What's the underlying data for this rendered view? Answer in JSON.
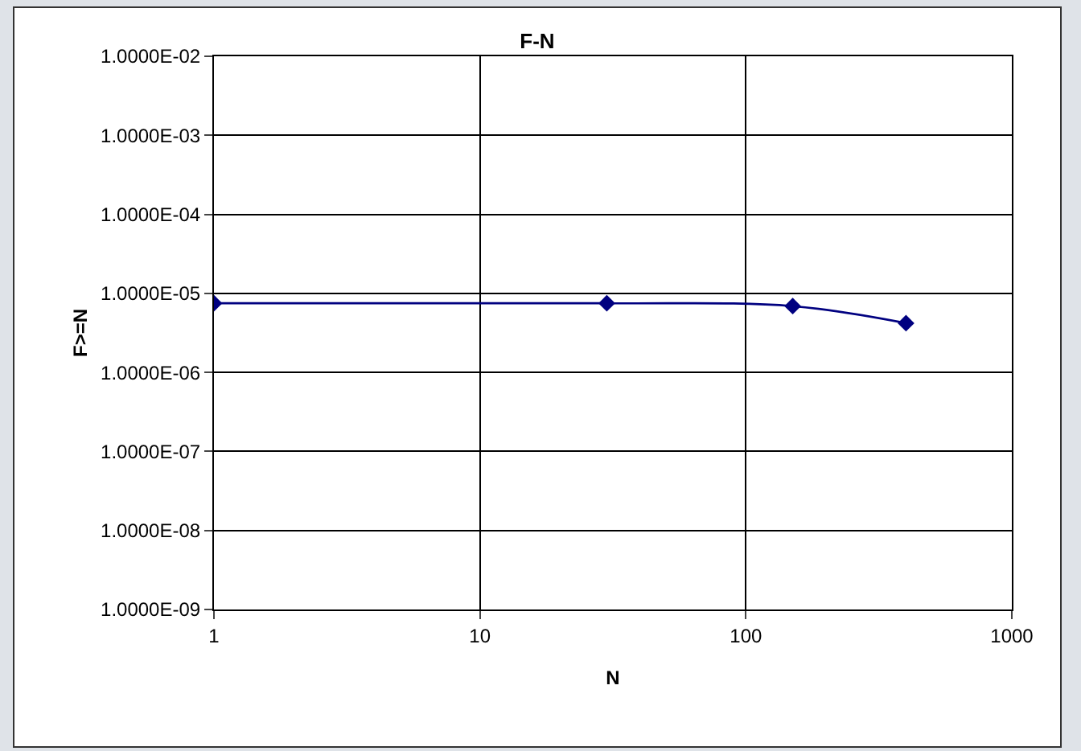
{
  "chart_data": {
    "type": "line",
    "title": "F-N",
    "xlabel": "N",
    "ylabel": "F>=N",
    "log": "xy",
    "x": [
      1,
      30,
      150,
      400
    ],
    "series": [
      {
        "color": "#000080",
        "values": [
          7.5e-06,
          7.5e-06,
          6.9e-06,
          4.2e-06
        ]
      }
    ],
    "xlim": [
      1,
      1000
    ],
    "xticks": [
      1,
      10,
      100,
      1000
    ],
    "ylim": [
      1e-09,
      0.01
    ],
    "yticks": [
      {
        "value": 1e-09,
        "label": "1.0000E-09"
      },
      {
        "value": 1e-08,
        "label": "1.0000E-08"
      },
      {
        "value": 1e-07,
        "label": "1.0000E-07"
      },
      {
        "value": 1e-06,
        "label": "1.0000E-06"
      },
      {
        "value": 1e-05,
        "label": "1.0000E-05"
      },
      {
        "value": 0.0001,
        "label": "1.0000E-04"
      },
      {
        "value": 0.001,
        "label": "1.0000E-03"
      },
      {
        "value": 0.01,
        "label": "1.0000E-02"
      }
    ],
    "grid": true,
    "marker": "diamond",
    "line_style": "solid"
  }
}
